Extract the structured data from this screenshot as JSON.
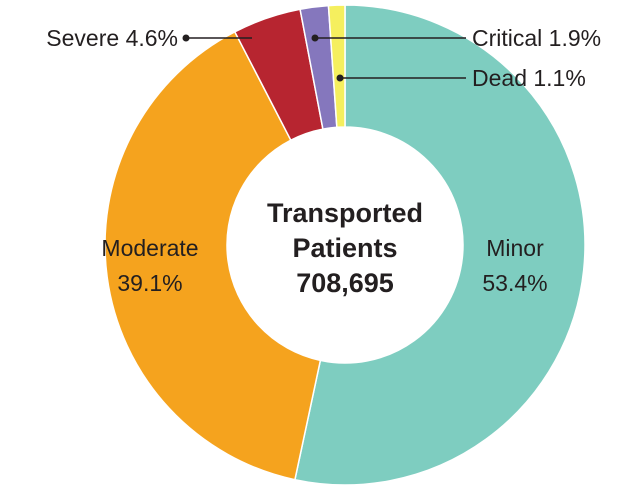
{
  "chart_data": {
    "type": "donut",
    "categories": [
      "Minor",
      "Moderate",
      "Severe",
      "Critical",
      "Dead"
    ],
    "values": [
      53.4,
      39.1,
      4.6,
      1.9,
      1.1
    ],
    "value_labels": [
      "53.4%",
      "39.1%",
      "4.6%",
      "1.9%",
      "1.1%"
    ],
    "colors": [
      "#7ecdc0",
      "#f5a31e",
      "#b72530",
      "#8577bd",
      "#f5ef5e"
    ],
    "center_text": [
      "Transported",
      "Patients",
      "708,695"
    ]
  }
}
